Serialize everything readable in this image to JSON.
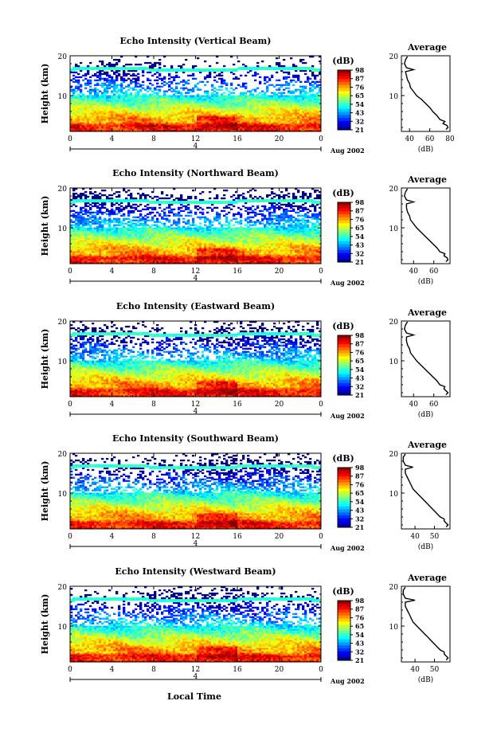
{
  "chart_data": [
    {
      "type": "heatmap",
      "title": "Echo Intensity (Vertical Beam)",
      "ylabel": "Height (km)",
      "x_ticks": [
        "0",
        "4",
        "8",
        "12",
        "16",
        "20",
        "0"
      ],
      "y_ticks": [
        "20",
        "10"
      ],
      "xlim": [
        0,
        24
      ],
      "ylim": [
        1,
        20
      ],
      "date_label": "4",
      "month_label": "Aug 2002",
      "colorbar": {
        "label": "(dB)",
        "ticks": [
          "98",
          "87",
          "76",
          "65",
          "54",
          "43",
          "32",
          "21"
        ],
        "range": [
          21,
          98
        ]
      },
      "profile": {
        "title": "Average",
        "xlabel": "(dB)",
        "x_ticks": [
          "40",
          "60",
          "80"
        ],
        "xlim": [
          32,
          80
        ],
        "y_ticks": [
          "20",
          "10"
        ],
        "points": [
          [
            76,
            1.5
          ],
          [
            78,
            2
          ],
          [
            77,
            2.5
          ],
          [
            73,
            3
          ],
          [
            75,
            3.5
          ],
          [
            70,
            4
          ],
          [
            67,
            5
          ],
          [
            63,
            6
          ],
          [
            60,
            7
          ],
          [
            56,
            8
          ],
          [
            52,
            9
          ],
          [
            47,
            10
          ],
          [
            44,
            11
          ],
          [
            41,
            12
          ],
          [
            40,
            13
          ],
          [
            38,
            14
          ],
          [
            37,
            15
          ],
          [
            36,
            16
          ],
          [
            44,
            16.5
          ],
          [
            37,
            17
          ],
          [
            35,
            18
          ],
          [
            36,
            19
          ],
          [
            38,
            19.8
          ]
        ]
      }
    },
    {
      "type": "heatmap",
      "title": "Echo Intensity (Northward Beam)",
      "ylabel": "Height (km)",
      "x_ticks": [
        "0",
        "4",
        "8",
        "12",
        "16",
        "20",
        "0"
      ],
      "y_ticks": [
        "20",
        "10"
      ],
      "xlim": [
        0,
        24
      ],
      "ylim": [
        1,
        20
      ],
      "date_label": "4",
      "month_label": "Aug 2002",
      "colorbar": {
        "label": "(dB)",
        "ticks": [
          "98",
          "87",
          "76",
          "65",
          "54",
          "43",
          "32",
          "21"
        ],
        "range": [
          21,
          98
        ]
      },
      "profile": {
        "title": "Average",
        "xlabel": "(dB)",
        "x_ticks": [
          "40",
          "60"
        ],
        "xlim": [
          28,
          76
        ],
        "y_ticks": [
          "20",
          "10"
        ],
        "points": [
          [
            72,
            1.5
          ],
          [
            74,
            2
          ],
          [
            73,
            2.5
          ],
          [
            70,
            3
          ],
          [
            71,
            3.5
          ],
          [
            66,
            4
          ],
          [
            63,
            5
          ],
          [
            59,
            6
          ],
          [
            55,
            7
          ],
          [
            51,
            8
          ],
          [
            47,
            9
          ],
          [
            43,
            10
          ],
          [
            40,
            11
          ],
          [
            37,
            12
          ],
          [
            36,
            13
          ],
          [
            34,
            14
          ],
          [
            33,
            15
          ],
          [
            33,
            16
          ],
          [
            40,
            16.5
          ],
          [
            33,
            17
          ],
          [
            31,
            18
          ],
          [
            32,
            19
          ],
          [
            34,
            19.8
          ]
        ]
      }
    },
    {
      "type": "heatmap",
      "title": "Echo Intensity (Eastward Beam)",
      "ylabel": "Height (km)",
      "x_ticks": [
        "0",
        "4",
        "8",
        "12",
        "16",
        "20",
        "0"
      ],
      "y_ticks": [
        "20",
        "10"
      ],
      "xlim": [
        0,
        24
      ],
      "ylim": [
        1,
        20
      ],
      "date_label": "4",
      "month_label": "Aug 2002",
      "colorbar": {
        "label": "(dB)",
        "ticks": [
          "98",
          "87",
          "76",
          "65",
          "54",
          "43",
          "32",
          "21"
        ],
        "range": [
          21,
          98
        ]
      },
      "profile": {
        "title": "Average",
        "xlabel": "(dB)",
        "x_ticks": [
          "40",
          "60"
        ],
        "xlim": [
          28,
          76
        ],
        "y_ticks": [
          "20",
          "10"
        ],
        "points": [
          [
            72,
            1.5
          ],
          [
            74,
            2
          ],
          [
            72,
            2.5
          ],
          [
            70,
            3
          ],
          [
            71,
            3.5
          ],
          [
            66,
            4
          ],
          [
            63,
            5
          ],
          [
            59,
            6
          ],
          [
            55,
            7
          ],
          [
            51,
            8
          ],
          [
            47,
            9
          ],
          [
            43,
            10
          ],
          [
            40,
            11
          ],
          [
            37,
            12
          ],
          [
            36,
            13
          ],
          [
            34,
            14
          ],
          [
            33,
            15
          ],
          [
            33,
            16
          ],
          [
            40,
            16.5
          ],
          [
            33,
            17
          ],
          [
            31,
            18
          ],
          [
            32,
            19
          ],
          [
            34,
            19.8
          ]
        ]
      }
    },
    {
      "type": "heatmap",
      "title": "Echo Intensity (Southward Beam)",
      "ylabel": "Height (km)",
      "x_ticks": [
        "0",
        "4",
        "8",
        "12",
        "16",
        "20",
        "0"
      ],
      "y_ticks": [
        "20",
        "10"
      ],
      "xlim": [
        0,
        24
      ],
      "ylim": [
        1,
        20
      ],
      "date_label": "4",
      "month_label": "Aug 2002",
      "colorbar": {
        "label": "(dB)",
        "ticks": [
          "98",
          "87",
          "76",
          "65",
          "54",
          "43",
          "32",
          "21"
        ],
        "range": [
          21,
          98
        ]
      },
      "profile": {
        "title": "Average",
        "xlabel": "(dB)",
        "x_ticks": [
          "40",
          "50"
        ],
        "xlim": [
          33,
          58
        ],
        "y_ticks": [
          "20",
          "10"
        ],
        "points": [
          [
            56,
            1.5
          ],
          [
            57,
            2
          ],
          [
            56,
            2.5
          ],
          [
            55,
            3
          ],
          [
            55,
            3.5
          ],
          [
            53,
            4
          ],
          [
            51,
            5
          ],
          [
            49,
            6
          ],
          [
            47,
            7
          ],
          [
            45,
            8
          ],
          [
            43,
            9
          ],
          [
            41,
            10
          ],
          [
            39,
            11
          ],
          [
            38,
            12
          ],
          [
            37,
            13
          ],
          [
            36,
            14
          ],
          [
            35,
            15
          ],
          [
            35,
            16
          ],
          [
            39,
            16.5
          ],
          [
            35,
            17
          ],
          [
            34,
            18
          ],
          [
            34,
            19
          ],
          [
            35,
            19.8
          ]
        ]
      }
    },
    {
      "type": "heatmap",
      "title": "Echo Intensity (Westward Beam)",
      "ylabel": "Height (km)",
      "x_ticks": [
        "0",
        "4",
        "8",
        "12",
        "16",
        "20",
        "0"
      ],
      "y_ticks": [
        "20",
        "10"
      ],
      "xlim": [
        0,
        24
      ],
      "ylim": [
        1,
        20
      ],
      "date_label": "4",
      "month_label": "Aug 2002",
      "colorbar": {
        "label": "(dB)",
        "ticks": [
          "98",
          "87",
          "76",
          "65",
          "54",
          "43",
          "32",
          "21"
        ],
        "range": [
          21,
          98
        ]
      },
      "profile": {
        "title": "Average",
        "xlabel": "(dB)",
        "x_ticks": [
          "40",
          "50"
        ],
        "xlim": [
          33,
          58
        ],
        "y_ticks": [
          "20",
          "10"
        ],
        "points": [
          [
            56,
            1.5
          ],
          [
            57,
            2
          ],
          [
            56,
            2.5
          ],
          [
            55,
            3
          ],
          [
            55,
            3.5
          ],
          [
            53,
            4
          ],
          [
            51,
            5
          ],
          [
            49,
            6
          ],
          [
            47,
            7
          ],
          [
            45,
            8
          ],
          [
            43,
            9
          ],
          [
            41,
            10
          ],
          [
            39,
            11
          ],
          [
            38,
            12
          ],
          [
            37,
            13
          ],
          [
            36,
            14
          ],
          [
            35,
            15
          ],
          [
            35,
            16
          ],
          [
            40,
            16.5
          ],
          [
            35,
            17
          ],
          [
            34,
            18
          ],
          [
            34,
            19
          ],
          [
            35,
            19.8
          ]
        ]
      }
    }
  ],
  "footer": {
    "xlabel": "Local Time"
  }
}
